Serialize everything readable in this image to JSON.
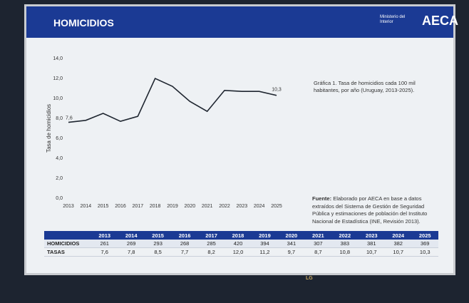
{
  "header": {
    "title": "HOMICIDIOS",
    "ministry": "Ministerio del Interior",
    "brand": "AECA"
  },
  "chart_data": {
    "type": "line",
    "y_label": "Tasa de homicidios",
    "categories": [
      "2013",
      "2014",
      "2015",
      "2016",
      "2017",
      "2018",
      "2019",
      "2020",
      "2021",
      "2022",
      "2023",
      "2024",
      "2025"
    ],
    "values": [
      7.6,
      7.8,
      8.5,
      7.7,
      8.2,
      12.0,
      11.2,
      9.7,
      8.7,
      10.8,
      10.7,
      10.7,
      10.3
    ],
    "value_labels": [
      "7,6",
      null,
      null,
      null,
      null,
      null,
      null,
      null,
      null,
      null,
      null,
      null,
      "10,3"
    ],
    "color": "#1f2630",
    "ylim": [
      0,
      14
    ],
    "yticks": [
      {
        "value": 0,
        "label": "0,0"
      },
      {
        "value": 2,
        "label": "2,0"
      },
      {
        "value": 4,
        "label": "4,0"
      },
      {
        "value": 6,
        "label": "6,0"
      },
      {
        "value": 8,
        "label": "8,0"
      },
      {
        "value": 10,
        "label": "10,0"
      },
      {
        "value": 12,
        "label": "12,0"
      },
      {
        "value": 14,
        "label": "14,0"
      }
    ],
    "grid": false
  },
  "caption": "Gráfica 1. Tasa de homicidios cada 100 mil habitantes, por año (Uruguay, 2013-2025).",
  "source": {
    "label": "Fuente:",
    "text": "Elaborado por AECA en base a datos extraídos del Sistema de Gestión de Seguridad Pública y estimaciones de población del Instituto Nacional de Estadística (INE, Revisión 2013)."
  },
  "table": {
    "header": [
      "2013",
      "2014",
      "2015",
      "2016",
      "2017",
      "2018",
      "2019",
      "2020",
      "2021",
      "2022",
      "2023",
      "2024",
      "2025"
    ],
    "rows": [
      [
        "HOMICIDIOS",
        "261",
        "269",
        "293",
        "268",
        "285",
        "420",
        "394",
        "341",
        "307",
        "383",
        "381",
        "382",
        "369"
      ],
      [
        "TASAS",
        "7,6",
        "7,8",
        "8,5",
        "7,7",
        "8,2",
        "12,0",
        "11,2",
        "9,7",
        "8,7",
        "10,8",
        "10,7",
        "10,7",
        "10,3"
      ]
    ]
  },
  "bezel_brand": "LG"
}
